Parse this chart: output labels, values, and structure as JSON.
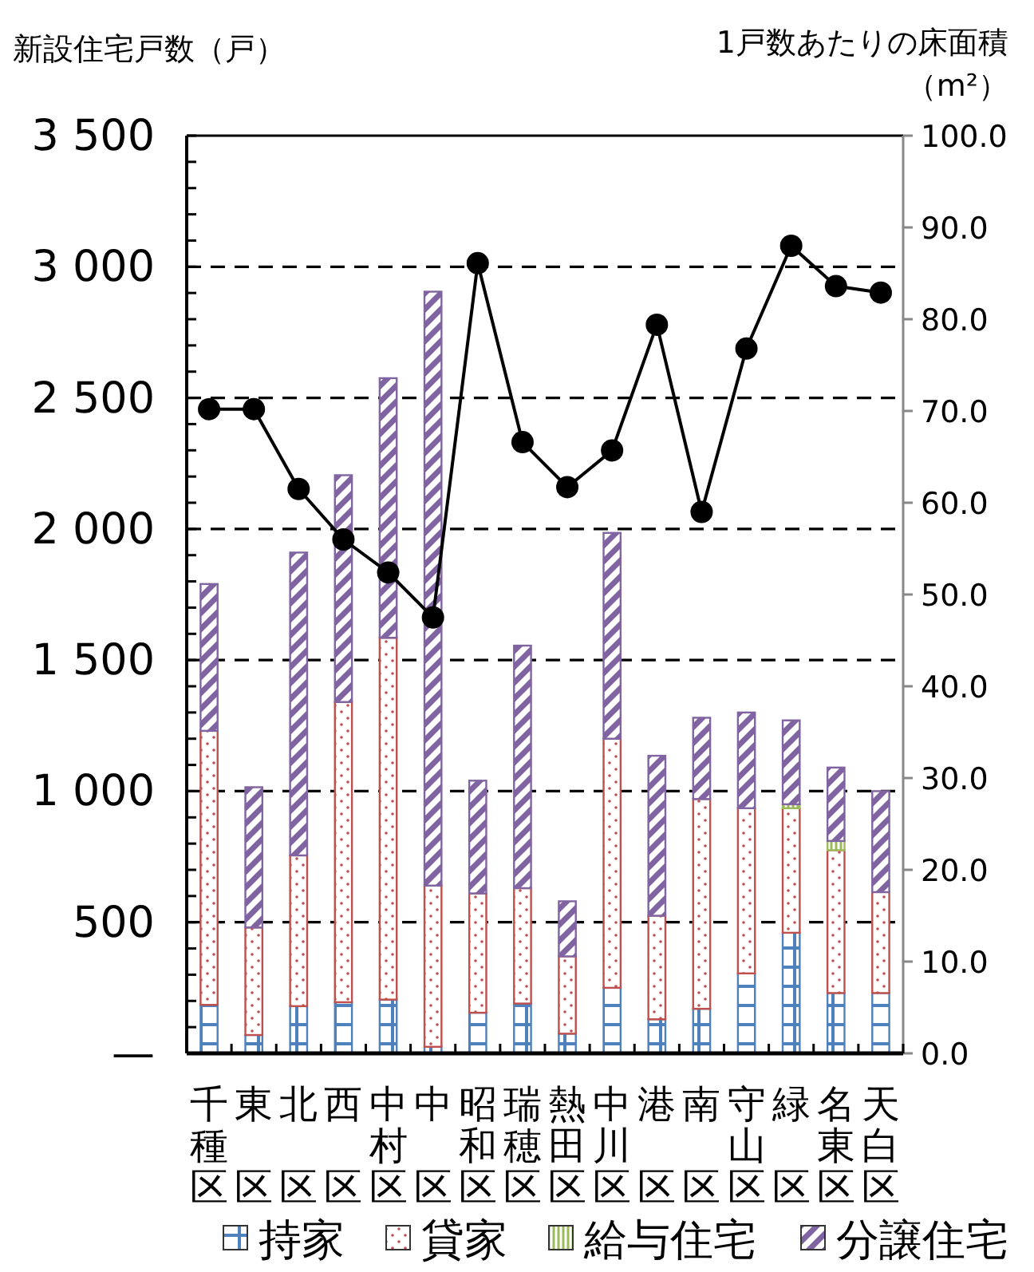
{
  "chart_data": {
    "type": "bar",
    "stacked": true,
    "ylabel": "新設住宅戸数（戸）",
    "y2label": "1戸数あたりの床面積（m²）",
    "categories": [
      "千種区",
      "東区",
      "北区",
      "西区",
      "中村区",
      "中区",
      "昭和区",
      "瑞穂区",
      "熱田区",
      "中川区",
      "港区",
      "南区",
      "守山区",
      "緑区",
      "名東区",
      "天白区"
    ],
    "series": [
      {
        "name": "持家",
        "color": "#4f81bd",
        "values": [
          185,
          70,
          180,
          195,
          205,
          25,
          155,
          190,
          75,
          250,
          130,
          170,
          305,
          460,
          230,
          230
        ]
      },
      {
        "name": "貸家",
        "color": "#c0504d",
        "values": [
          1045,
          410,
          575,
          1145,
          1380,
          615,
          455,
          440,
          295,
          950,
          395,
          800,
          630,
          475,
          545,
          385
        ]
      },
      {
        "name": "給与住宅",
        "color": "#9bbb59",
        "values": [
          0,
          0,
          0,
          0,
          0,
          0,
          0,
          0,
          0,
          0,
          0,
          0,
          0,
          15,
          35,
          0
        ]
      },
      {
        "name": "分譲住宅",
        "color": "#8064a2",
        "values": [
          560,
          535,
          1155,
          865,
          990,
          2265,
          430,
          925,
          210,
          785,
          610,
          310,
          365,
          320,
          280,
          385
        ]
      },
      {
        "type": "line",
        "axis": "y2",
        "color": "#000000",
        "marker": "circle",
        "values": [
          70.2,
          70.2,
          61.5,
          56.0,
          52.4,
          47.5,
          86.1,
          66.6,
          61.7,
          65.7,
          79.4,
          59.0,
          76.8,
          88.0,
          83.6,
          82.9
        ]
      }
    ],
    "ylim": [
      0,
      3500
    ],
    "yticks": [
      {
        "value": 0,
        "label": "—"
      },
      {
        "value": 100,
        "label": null
      },
      {
        "value": 200,
        "label": null
      },
      {
        "value": 300,
        "label": null
      },
      {
        "value": 400,
        "label": null
      },
      {
        "value": 500,
        "label": "500"
      },
      {
        "value": 600,
        "label": null
      },
      {
        "value": 700,
        "label": null
      },
      {
        "value": 800,
        "label": null
      },
      {
        "value": 900,
        "label": null
      },
      {
        "value": 1000,
        "label": "1 000"
      },
      {
        "value": 1100,
        "label": null
      },
      {
        "value": 1200,
        "label": null
      },
      {
        "value": 1300,
        "label": null
      },
      {
        "value": 1400,
        "label": null
      },
      {
        "value": 1500,
        "label": "1 500"
      },
      {
        "value": 1600,
        "label": null
      },
      {
        "value": 1700,
        "label": null
      },
      {
        "value": 1800,
        "label": null
      },
      {
        "value": 1900,
        "label": null
      },
      {
        "value": 2000,
        "label": "2 000"
      },
      {
        "value": 2100,
        "label": null
      },
      {
        "value": 2200,
        "label": null
      },
      {
        "value": 2300,
        "label": null
      },
      {
        "value": 2400,
        "label": null
      },
      {
        "value": 2500,
        "label": "2 500"
      },
      {
        "value": 2600,
        "label": null
      },
      {
        "value": 2700,
        "label": null
      },
      {
        "value": 2800,
        "label": null
      },
      {
        "value": 2900,
        "label": null
      },
      {
        "value": 3000,
        "label": "3 000"
      },
      {
        "value": 3100,
        "label": null
      },
      {
        "value": 3200,
        "label": null
      },
      {
        "value": 3300,
        "label": null
      },
      {
        "value": 3400,
        "label": null
      },
      {
        "value": 3500,
        "label": "3 500"
      }
    ],
    "y2lim": [
      0,
      100
    ],
    "y2ticks": [
      {
        "value": 0,
        "label": "0.0"
      },
      {
        "value": 10,
        "label": "10.0"
      },
      {
        "value": 20,
        "label": "20.0"
      },
      {
        "value": 30,
        "label": "30.0"
      },
      {
        "value": 40,
        "label": "40.0"
      },
      {
        "value": 50,
        "label": "50.0"
      },
      {
        "value": 60,
        "label": "60.0"
      },
      {
        "value": 70,
        "label": "70.0"
      },
      {
        "value": 80,
        "label": "80.0"
      },
      {
        "value": 90,
        "label": "90.0"
      },
      {
        "value": 100,
        "label": "100.0"
      }
    ],
    "grid": "y",
    "legend": "bottom"
  }
}
